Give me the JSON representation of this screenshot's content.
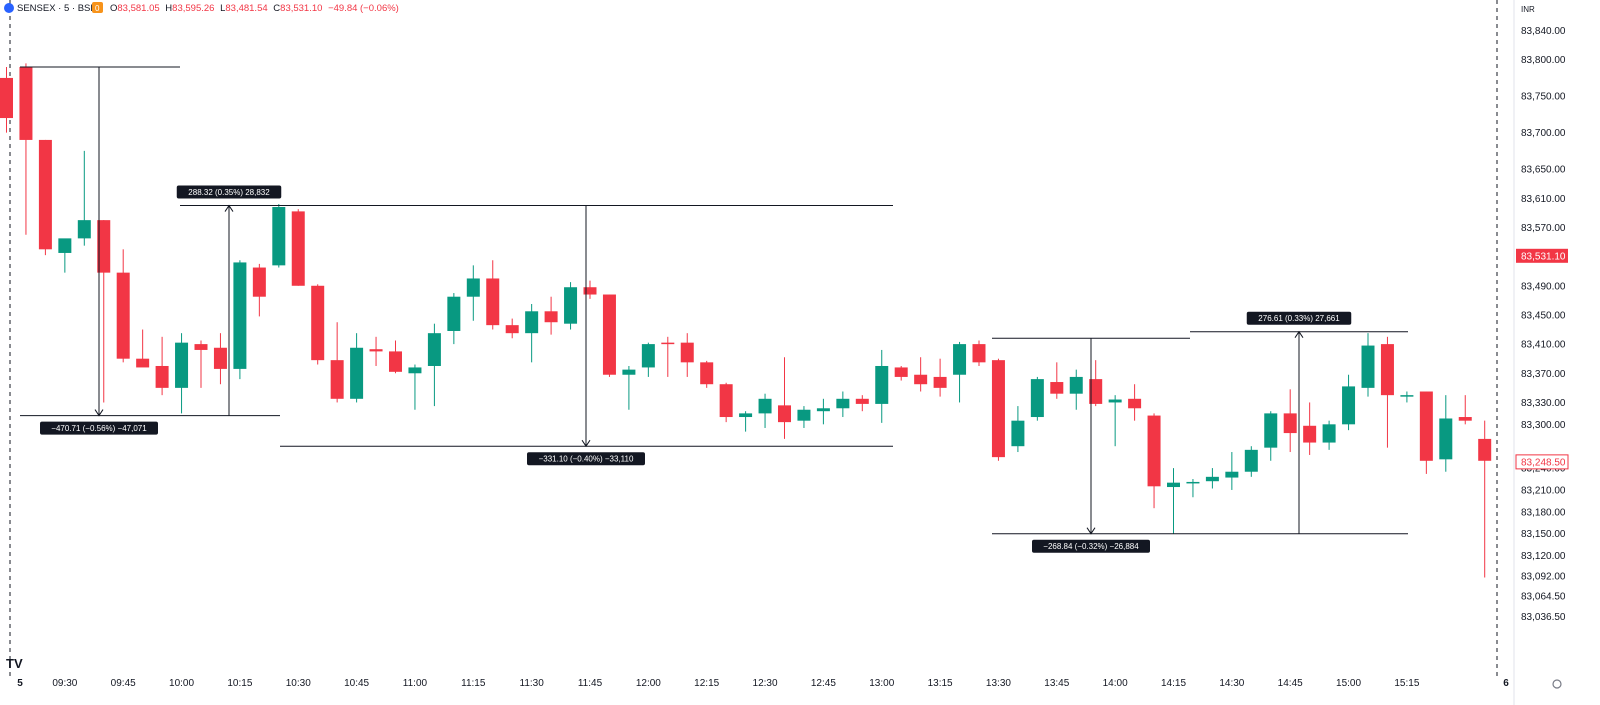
{
  "header": {
    "symbol_title": "SENSEX · 5 · BSE",
    "badge": "0",
    "ohlc": {
      "o_label": "O",
      "o_value": "83,581.05",
      "h_label": "H",
      "h_value": "83,595.26",
      "l_label": "L",
      "l_value": "83,481.54",
      "c_label": "C",
      "c_value": "83,531.10",
      "change": "−49.84 (−0.06%)"
    }
  },
  "currency": "INR",
  "colors": {
    "up": "#089981",
    "down": "#f23645",
    "axis_text": "#131722",
    "tag_bg": "#131722"
  },
  "price_axis": {
    "ticks": [
      "83,840.00",
      "83,800.00",
      "83,750.00",
      "83,700.00",
      "83,650.00",
      "83,610.00",
      "83,570.00",
      "83,490.00",
      "83,450.00",
      "83,410.00",
      "83,370.00",
      "83,330.00",
      "83,300.00",
      "83,240.00",
      "83,210.00",
      "83,180.00",
      "83,150.00",
      "83,120.00",
      "83,092.00",
      "83,064.50",
      "83,036.50"
    ],
    "current_price_label": "83,531.10",
    "last_price_label": "83,248.50"
  },
  "time_axis": {
    "labels": [
      "5",
      "09:30",
      "09:45",
      "10:00",
      "10:15",
      "10:30",
      "10:45",
      "11:00",
      "11:15",
      "11:30",
      "11:45",
      "12:00",
      "12:15",
      "12:30",
      "12:45",
      "13:00",
      "13:15",
      "13:30",
      "13:45",
      "14:00",
      "14:15",
      "14:30",
      "14:45",
      "15:00",
      "15:15",
      "6"
    ]
  },
  "measurements": [
    {
      "label": "−470.71 (−0.56%) −47,071"
    },
    {
      "label": "288.32 (0.35%) 28,832"
    },
    {
      "label": "−331.10 (−0.40%) −33,110"
    },
    {
      "label": "−268.84 (−0.32%) −26,884"
    },
    {
      "label": "276.61 (0.33%) 27,661"
    }
  ],
  "chart_data": {
    "type": "candlestick",
    "interval": "5",
    "ylim": [
      83020,
      83860
    ],
    "candles": [
      {
        "t": "09:15",
        "o": 83775,
        "h": 83790,
        "l": 83700,
        "c": 83720
      },
      {
        "t": "09:20",
        "o": 83790,
        "h": 83795,
        "l": 83560,
        "c": 83690
      },
      {
        "t": "09:25",
        "o": 83690,
        "h": 83690,
        "l": 83532,
        "c": 83540
      },
      {
        "t": "09:30",
        "o": 83535,
        "h": 83552,
        "l": 83508,
        "c": 83555
      },
      {
        "t": "09:35",
        "o": 83555,
        "h": 83675,
        "l": 83545,
        "c": 83580
      },
      {
        "t": "09:40",
        "o": 83580,
        "h": 83580,
        "l": 83330,
        "c": 83508
      },
      {
        "t": "09:45",
        "o": 83508,
        "h": 83540,
        "l": 83385,
        "c": 83390
      },
      {
        "t": "09:50",
        "o": 83390,
        "h": 83430,
        "l": 83380,
        "c": 83378
      },
      {
        "t": "09:55",
        "o": 83380,
        "h": 83420,
        "l": 83340,
        "c": 83350
      },
      {
        "t": "10:00",
        "o": 83350,
        "h": 83425,
        "l": 83315,
        "c": 83412
      },
      {
        "t": "10:05",
        "o": 83410,
        "h": 83415,
        "l": 83350,
        "c": 83402
      },
      {
        "t": "10:10",
        "o": 83405,
        "h": 83425,
        "l": 83355,
        "c": 83376
      },
      {
        "t": "10:15",
        "o": 83376,
        "h": 83525,
        "l": 83362,
        "c": 83522
      },
      {
        "t": "10:20",
        "o": 83515,
        "h": 83520,
        "l": 83448,
        "c": 83475
      },
      {
        "t": "10:25",
        "o": 83518,
        "h": 83602,
        "l": 83515,
        "c": 83598
      },
      {
        "t": "10:30",
        "o": 83592,
        "h": 83595,
        "l": 83490,
        "c": 83490
      },
      {
        "t": "10:35",
        "o": 83490,
        "h": 83492,
        "l": 83382,
        "c": 83388
      },
      {
        "t": "10:40",
        "o": 83388,
        "h": 83440,
        "l": 83330,
        "c": 83335
      },
      {
        "t": "10:45",
        "o": 83335,
        "h": 83425,
        "l": 83330,
        "c": 83405
      },
      {
        "t": "10:50",
        "o": 83403,
        "h": 83420,
        "l": 83380,
        "c": 83400
      },
      {
        "t": "10:55",
        "o": 83400,
        "h": 83415,
        "l": 83370,
        "c": 83372
      },
      {
        "t": "11:00",
        "o": 83370,
        "h": 83382,
        "l": 83320,
        "c": 83378
      },
      {
        "t": "11:05",
        "o": 83380,
        "h": 83438,
        "l": 83325,
        "c": 83425
      },
      {
        "t": "11:10",
        "o": 83428,
        "h": 83480,
        "l": 83410,
        "c": 83475
      },
      {
        "t": "11:15",
        "o": 83475,
        "h": 83518,
        "l": 83442,
        "c": 83500
      },
      {
        "t": "11:20",
        "o": 83500,
        "h": 83525,
        "l": 83430,
        "c": 83436
      },
      {
        "t": "11:25",
        "o": 83436,
        "h": 83445,
        "l": 83418,
        "c": 83425
      },
      {
        "t": "11:30",
        "o": 83425,
        "h": 83465,
        "l": 83385,
        "c": 83455
      },
      {
        "t": "11:35",
        "o": 83455,
        "h": 83475,
        "l": 83423,
        "c": 83440
      },
      {
        "t": "11:40",
        "o": 83438,
        "h": 83495,
        "l": 83430,
        "c": 83488
      },
      {
        "t": "11:45",
        "o": 83488,
        "h": 83497,
        "l": 83472,
        "c": 83478
      },
      {
        "t": "11:50",
        "o": 83478,
        "h": 83478,
        "l": 83365,
        "c": 83368
      },
      {
        "t": "11:55",
        "o": 83368,
        "h": 83380,
        "l": 83320,
        "c": 83375
      },
      {
        "t": "12:00",
        "o": 83378,
        "h": 83412,
        "l": 83365,
        "c": 83410
      },
      {
        "t": "12:05",
        "o": 83412,
        "h": 83420,
        "l": 83365,
        "c": 83410
      },
      {
        "t": "12:10",
        "o": 83412,
        "h": 83425,
        "l": 83365,
        "c": 83385
      },
      {
        "t": "12:15",
        "o": 83385,
        "h": 83387,
        "l": 83350,
        "c": 83355
      },
      {
        "t": "12:20",
        "o": 83355,
        "h": 83357,
        "l": 83303,
        "c": 83310
      },
      {
        "t": "12:25",
        "o": 83310,
        "h": 83318,
        "l": 83290,
        "c": 83315
      },
      {
        "t": "12:30",
        "o": 83315,
        "h": 83342,
        "l": 83295,
        "c": 83335
      },
      {
        "t": "12:35",
        "o": 83326,
        "h": 83392,
        "l": 83280,
        "c": 83303
      },
      {
        "t": "12:40",
        "o": 83305,
        "h": 83325,
        "l": 83295,
        "c": 83320
      },
      {
        "t": "12:45",
        "o": 83318,
        "h": 83335,
        "l": 83300,
        "c": 83322
      },
      {
        "t": "12:50",
        "o": 83322,
        "h": 83345,
        "l": 83310,
        "c": 83335
      },
      {
        "t": "12:55",
        "o": 83335,
        "h": 83340,
        "l": 83318,
        "c": 83328
      },
      {
        "t": "13:00",
        "o": 83328,
        "h": 83402,
        "l": 83302,
        "c": 83380
      },
      {
        "t": "13:05",
        "o": 83378,
        "h": 83380,
        "l": 83360,
        "c": 83365
      },
      {
        "t": "13:10",
        "o": 83368,
        "h": 83392,
        "l": 83345,
        "c": 83355
      },
      {
        "t": "13:15",
        "o": 83365,
        "h": 83390,
        "l": 83338,
        "c": 83350
      },
      {
        "t": "13:20",
        "o": 83368,
        "h": 83413,
        "l": 83330,
        "c": 83410
      },
      {
        "t": "13:25",
        "o": 83410,
        "h": 83415,
        "l": 83380,
        "c": 83385
      },
      {
        "t": "13:30",
        "o": 83388,
        "h": 83390,
        "l": 83250,
        "c": 83255
      },
      {
        "t": "13:35",
        "o": 83270,
        "h": 83325,
        "l": 83262,
        "c": 83305
      },
      {
        "t": "13:40",
        "o": 83310,
        "h": 83365,
        "l": 83305,
        "c": 83362
      },
      {
        "t": "13:45",
        "o": 83358,
        "h": 83385,
        "l": 83335,
        "c": 83342
      },
      {
        "t": "13:50",
        "o": 83342,
        "h": 83375,
        "l": 83320,
        "c": 83365
      },
      {
        "t": "13:55",
        "o": 83362,
        "h": 83388,
        "l": 83325,
        "c": 83328
      },
      {
        "t": "14:00",
        "o": 83330,
        "h": 83340,
        "l": 83270,
        "c": 83334
      },
      {
        "t": "14:05",
        "o": 83335,
        "h": 83355,
        "l": 83305,
        "c": 83322
      },
      {
        "t": "14:10",
        "o": 83312,
        "h": 83315,
        "l": 83185,
        "c": 83215
      },
      {
        "t": "14:15",
        "o": 83214,
        "h": 83240,
        "l": 83150,
        "c": 83220
      },
      {
        "t": "14:20",
        "o": 83220,
        "h": 83225,
        "l": 83200,
        "c": 83221
      },
      {
        "t": "14:25",
        "o": 83222,
        "h": 83240,
        "l": 83212,
        "c": 83228
      },
      {
        "t": "14:30",
        "o": 83227,
        "h": 83262,
        "l": 83210,
        "c": 83235
      },
      {
        "t": "14:35",
        "o": 83235,
        "h": 83270,
        "l": 83228,
        "c": 83265
      },
      {
        "t": "14:40",
        "o": 83268,
        "h": 83318,
        "l": 83250,
        "c": 83315
      },
      {
        "t": "14:45",
        "o": 83315,
        "h": 83348,
        "l": 83262,
        "c": 83288
      },
      {
        "t": "14:50",
        "o": 83298,
        "h": 83330,
        "l": 83258,
        "c": 83275
      },
      {
        "t": "14:55",
        "o": 83275,
        "h": 83305,
        "l": 83265,
        "c": 83300
      },
      {
        "t": "15:00",
        "o": 83300,
        "h": 83368,
        "l": 83292,
        "c": 83352
      },
      {
        "t": "15:05",
        "o": 83350,
        "h": 83425,
        "l": 83338,
        "c": 83408
      },
      {
        "t": "15:10",
        "o": 83410,
        "h": 83420,
        "l": 83268,
        "c": 83340
      },
      {
        "t": "15:15",
        "o": 83338,
        "h": 83345,
        "l": 83330,
        "c": 83340
      },
      {
        "t": "15:20",
        "o": 83345,
        "h": 83345,
        "l": 83232,
        "c": 83250
      },
      {
        "t": "15:25",
        "o": 83252,
        "h": 83340,
        "l": 83235,
        "c": 83308
      },
      {
        "t": "15:30",
        "o": 83310,
        "h": 83340,
        "l": 83300,
        "c": 83305
      },
      {
        "t": "15:35",
        "o": 83280,
        "h": 83305,
        "l": 83090,
        "c": 83250
      }
    ]
  }
}
